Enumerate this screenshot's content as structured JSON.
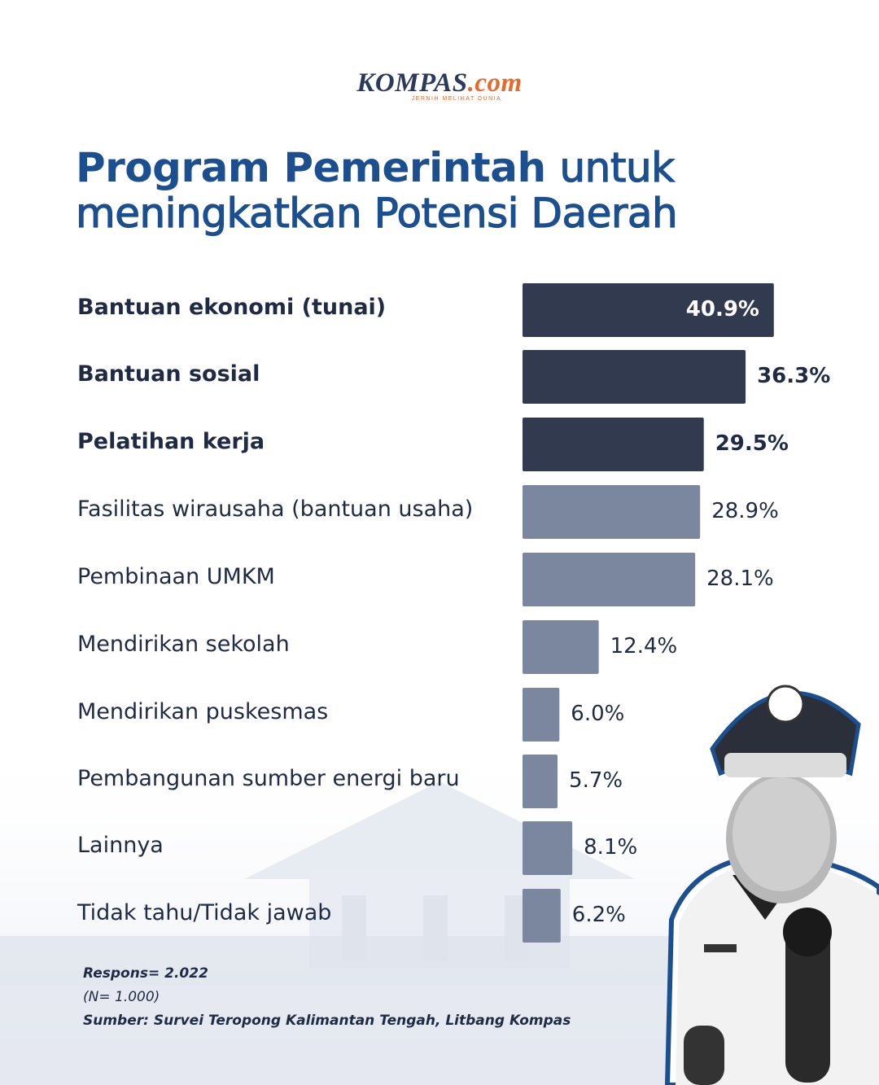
{
  "brand": {
    "name": "KOMPAS",
    "suffix": ".com",
    "tagline": "JERNIH MELIHAT DUNIA"
  },
  "title": {
    "bold": "Program Pemerintah",
    "regular_1": "untuk",
    "regular_2": "meningkatkan Potensi Daerah"
  },
  "colors": {
    "dark_bar": "#313a4e",
    "light_bar": "#7a879f",
    "title": "#1b4f8f"
  },
  "chart_data": {
    "type": "bar",
    "orientation": "horizontal",
    "categories": [
      "Bantuan ekonomi (tunai)",
      "Bantuan sosial",
      "Pelatihan kerja",
      "Fasilitas wirausaha (bantuan usaha)",
      "Pembinaan UMKM",
      "Mendirikan sekolah",
      "Mendirikan puskesmas",
      "Pembangunan sumber energi baru",
      "Lainnya",
      "Tidak tahu/Tidak jawab"
    ],
    "values": [
      40.9,
      36.3,
      29.5,
      28.9,
      28.1,
      12.4,
      6.0,
      5.7,
      8.1,
      6.2
    ],
    "value_labels": [
      "40.9%",
      "36.3%",
      "29.5%",
      "28.9%",
      "28.1%",
      "12.4%",
      "6.0%",
      "5.7%",
      "8.1%",
      "6.2%"
    ],
    "highlighted_top": 3,
    "grid": false
  },
  "notes": {
    "responses": "Respons= 2.022",
    "sample": "(N= 1.000)",
    "source": "Sumber: Survei Teropong Kalimantan Tengah, Litbang Kompas"
  },
  "photo": {
    "icon": "official-portrait-icon"
  }
}
